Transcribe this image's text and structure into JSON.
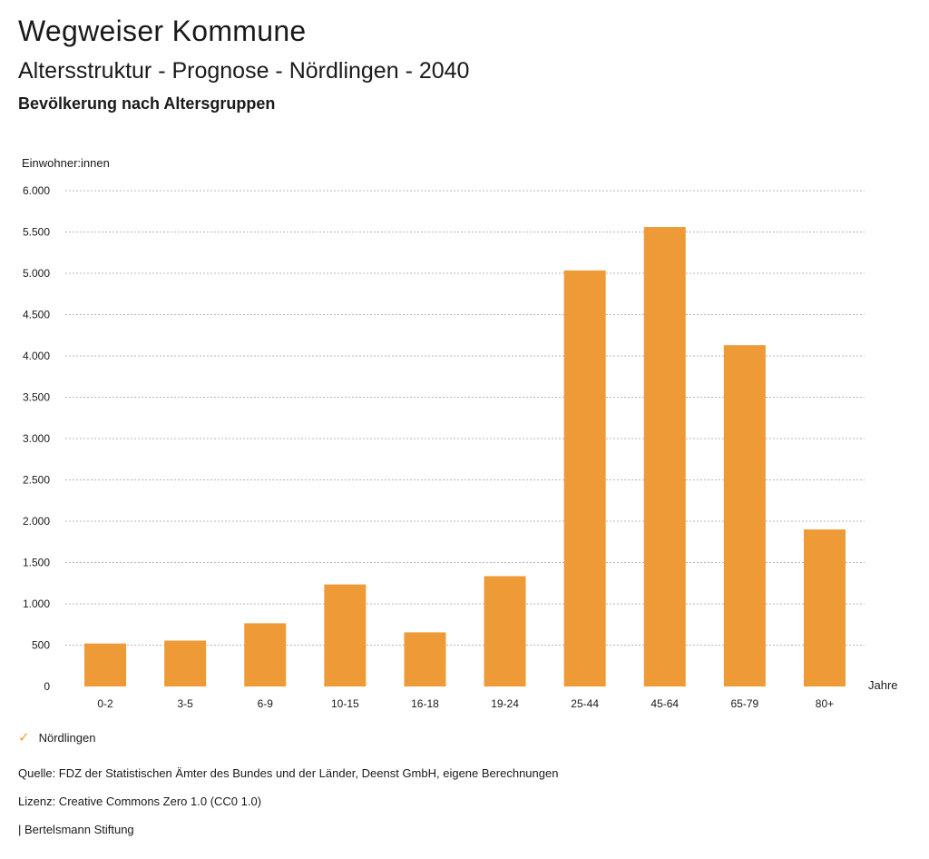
{
  "header": {
    "title": "Wegweiser Kommune",
    "subtitle": "Altersstruktur - Prognose - Nördlingen - 2040",
    "section": "Bevölkerung nach Altersgruppen"
  },
  "chart_data": {
    "type": "bar",
    "ylabel": "Einwohner:innen",
    "xlabel": "Jahre",
    "categories": [
      "0-2",
      "3-5",
      "6-9",
      "10-15",
      "16-18",
      "19-24",
      "25-44",
      "45-64",
      "65-79",
      "80+"
    ],
    "series": [
      {
        "name": "Nördlingen",
        "values": [
          520,
          555,
          765,
          1235,
          655,
          1335,
          5035,
          5560,
          4130,
          1900
        ]
      }
    ],
    "ylim": [
      0,
      6000
    ],
    "yticks": [
      0,
      500,
      1000,
      1500,
      2000,
      2500,
      3000,
      3500,
      4000,
      4500,
      5000,
      5500,
      6000
    ],
    "ytick_labels": [
      "0",
      "500",
      "1.000",
      "1.500",
      "2.000",
      "2.500",
      "3.000",
      "3.500",
      "4.000",
      "4.500",
      "5.000",
      "5.500",
      "6.000"
    ],
    "grid": true,
    "bar_color": "#ed9a37",
    "legend_position": "bottom-left"
  },
  "legend": {
    "label": "Nördlingen",
    "color": "#ed9a37"
  },
  "footer": {
    "source": "Quelle: FDZ der Statistischen Ämter des Bundes und der Länder, Deenst GmbH, eigene Berechnungen",
    "license": "Lizenz: Creative Commons Zero 1.0 (CC0 1.0)",
    "brand": "| Bertelsmann Stiftung"
  }
}
